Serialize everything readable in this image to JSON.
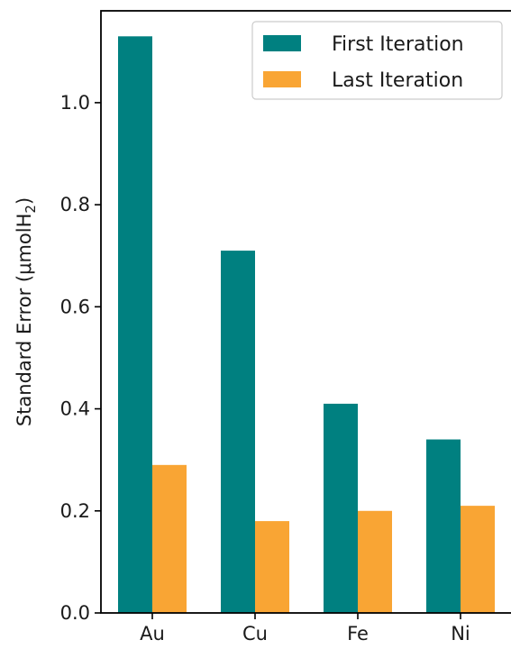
{
  "chart_data": {
    "type": "bar",
    "categories": [
      "Au",
      "Cu",
      "Fe",
      "Ni"
    ],
    "series": [
      {
        "name": "First Iteration",
        "values": [
          1.13,
          0.71,
          0.41,
          0.34
        ],
        "color": "#008080"
      },
      {
        "name": "Last Iteration",
        "values": [
          0.29,
          0.18,
          0.2,
          0.21
        ],
        "color": "#F9A534"
      }
    ],
    "ylabel": "Standard Error (μmolH",
    "ylabel_subscript": "2",
    "ylabel_suffix": ")",
    "yticks": [
      0.0,
      0.2,
      0.4,
      0.6,
      0.8,
      1.0
    ],
    "ytick_labels": [
      "0.0",
      "0.2",
      "0.4",
      "0.6",
      "0.8",
      "1.0"
    ],
    "ylim": [
      0.0,
      1.18
    ],
    "grid": false,
    "legend_position": "top-right"
  }
}
